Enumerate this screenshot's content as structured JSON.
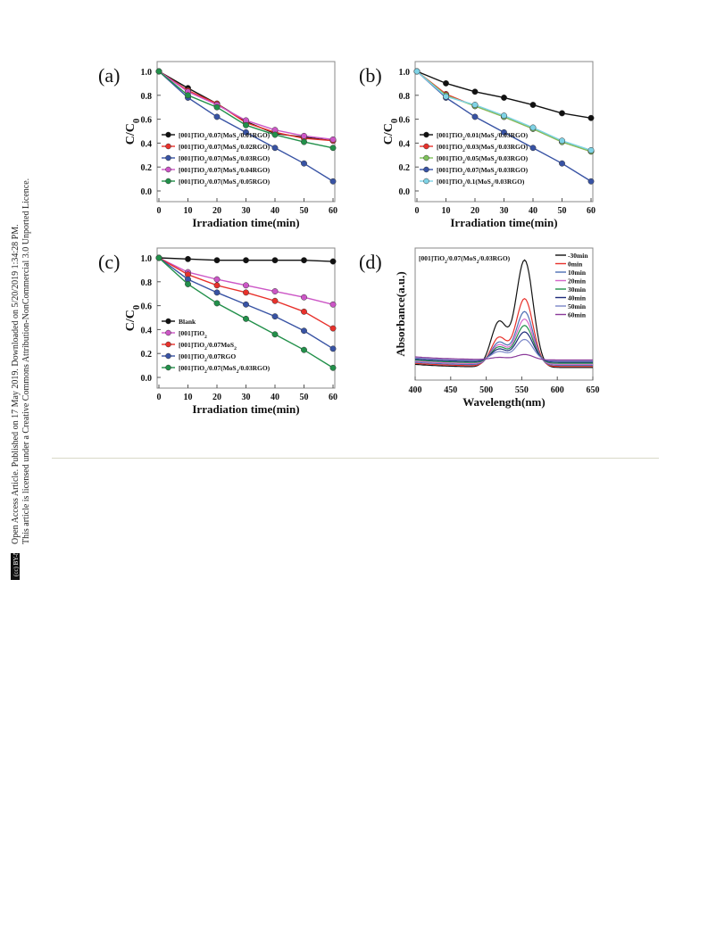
{
  "notice": {
    "line1": "Open Access Article. Published on 17 May 2019. Downloaded on 5/20/2019 1:34:28 PM.",
    "line2": "This article is licensed under a Creative Commons Attribution-NonCommercial 3.0 Unported Licence.",
    "cc_badge": "(cc) BY-NC"
  },
  "colors": {
    "black": "#111111",
    "red": "#e8312b",
    "blue": "#3853a4",
    "magenta": "#cc56c6",
    "green": "#22904a",
    "lightgreen": "#7fc25b",
    "cyan": "#7fd3e6"
  },
  "chart_data": [
    {
      "panel": "(a)",
      "type": "line",
      "xlabel": "Irradiation time(min)",
      "ylabel": "C/C0",
      "x": [
        0,
        10,
        20,
        30,
        40,
        50,
        60
      ],
      "xlim": [
        0,
        60
      ],
      "ylim": [
        0.0,
        1.0
      ],
      "xticks": [
        "0",
        "10",
        "20",
        "30",
        "40",
        "50",
        "60"
      ],
      "yticks": [
        "0.0",
        "0.2",
        "0.4",
        "0.6",
        "0.8",
        "1.0"
      ],
      "legend_position": "lower-left",
      "series": [
        {
          "name": "[001]TiO2/0.07(MoS2/0.01RGO)",
          "color": "#111111",
          "values": [
            1.0,
            0.86,
            0.73,
            0.58,
            0.48,
            0.45,
            0.42
          ]
        },
        {
          "name": "[001]TiO2/0.07(MoS2/0.02RGO)",
          "color": "#e8312b",
          "values": [
            1.0,
            0.84,
            0.73,
            0.57,
            0.49,
            0.44,
            0.42
          ]
        },
        {
          "name": "[001]TiO2/0.07(MoS2/0.03RGO)",
          "color": "#3853a4",
          "values": [
            1.0,
            0.78,
            0.62,
            0.49,
            0.36,
            0.23,
            0.08
          ]
        },
        {
          "name": "[001]TiO2/0.07(MoS2/0.04RGO)",
          "color": "#cc56c6",
          "values": [
            1.0,
            0.83,
            0.72,
            0.59,
            0.51,
            0.46,
            0.43
          ]
        },
        {
          "name": "[001]TiO2/0.07(MoS2/0.05RGO)",
          "color": "#22904a",
          "values": [
            1.0,
            0.8,
            0.7,
            0.55,
            0.47,
            0.41,
            0.36
          ]
        }
      ]
    },
    {
      "panel": "(b)",
      "type": "line",
      "xlabel": "Irradiation time(min)",
      "ylabel": "C/C0",
      "x": [
        0,
        10,
        20,
        30,
        40,
        50,
        60
      ],
      "xlim": [
        0,
        60
      ],
      "ylim": [
        0.0,
        1.0
      ],
      "xticks": [
        "0",
        "10",
        "20",
        "30",
        "40",
        "50",
        "60"
      ],
      "yticks": [
        "0.0",
        "0.2",
        "0.4",
        "0.6",
        "0.8",
        "1.0"
      ],
      "legend_position": "lower-left",
      "series": [
        {
          "name": "[001]TiO2/0.01(MoS2/0.03RGO)",
          "color": "#111111",
          "values": [
            1.0,
            0.9,
            0.83,
            0.78,
            0.72,
            0.65,
            0.61
          ]
        },
        {
          "name": "[001]TiO2/0.03(MoS2/0.03RGO)",
          "color": "#e8312b",
          "values": [
            1.0,
            0.81,
            0.71,
            0.62,
            0.52,
            0.41,
            0.33
          ]
        },
        {
          "name": "[001]TiO2/0.05(MoS2/0.03RGO)",
          "color": "#7fc25b",
          "values": [
            1.0,
            0.8,
            0.71,
            0.62,
            0.52,
            0.41,
            0.33
          ]
        },
        {
          "name": "[001]TiO2/0.07(MoS2/0.03RGO)",
          "color": "#3853a4",
          "values": [
            1.0,
            0.78,
            0.62,
            0.49,
            0.36,
            0.23,
            0.08
          ]
        },
        {
          "name": "[001]TiO2/0.1(MoS2/0.03RGO)",
          "color": "#7fd3e6",
          "values": [
            1.0,
            0.79,
            0.72,
            0.63,
            0.53,
            0.42,
            0.34
          ]
        }
      ]
    },
    {
      "panel": "(c)",
      "type": "line",
      "xlabel": "Irradiation time(min)",
      "ylabel": "C/C0",
      "x": [
        0,
        10,
        20,
        30,
        40,
        50,
        60
      ],
      "xlim": [
        0,
        60
      ],
      "ylim": [
        0.0,
        1.0
      ],
      "xticks": [
        "0",
        "10",
        "20",
        "30",
        "40",
        "50",
        "60"
      ],
      "yticks": [
        "0.0",
        "0.2",
        "0.4",
        "0.6",
        "0.8",
        "1.0"
      ],
      "legend_position": "lower-left",
      "series": [
        {
          "name": "Blank",
          "color": "#111111",
          "values": [
            1.0,
            0.99,
            0.98,
            0.98,
            0.98,
            0.98,
            0.97
          ]
        },
        {
          "name": "[001]TiO2",
          "color": "#cc56c6",
          "values": [
            1.0,
            0.88,
            0.82,
            0.77,
            0.72,
            0.67,
            0.61
          ]
        },
        {
          "name": "[001]TiO2/0.07MoS2",
          "color": "#e8312b",
          "values": [
            1.0,
            0.86,
            0.77,
            0.71,
            0.64,
            0.55,
            0.41
          ]
        },
        {
          "name": "[001]TiO2/0.07RGO",
          "color": "#3853a4",
          "values": [
            1.0,
            0.82,
            0.71,
            0.61,
            0.51,
            0.39,
            0.24
          ]
        },
        {
          "name": "[001]TiO2/0.07(MoS2/0.03RGO)",
          "color": "#22904a",
          "values": [
            1.0,
            0.78,
            0.62,
            0.49,
            0.36,
            0.23,
            0.08
          ]
        }
      ]
    },
    {
      "panel": "(d)",
      "type": "line",
      "xlabel": "Wavelength(nm)",
      "ylabel": "Absorbance(a.u.)",
      "annotation": "[001]TiO2/0.07(MoS2/0.03RGO)",
      "xlim": [
        400,
        650
      ],
      "xticks": [
        "400",
        "450",
        "500",
        "550",
        "600",
        "650"
      ],
      "peak_nm": 554,
      "shoulder_nm": 518,
      "legend_position": "top-right",
      "series": [
        {
          "name": "-30min",
          "color": "#111111",
          "peak": 1.0
        },
        {
          "name": "0min",
          "color": "#e8312b",
          "peak": 0.63
        },
        {
          "name": "10min",
          "color": "#4e6fb5",
          "peak": 0.5
        },
        {
          "name": "20min",
          "color": "#d466c8",
          "peak": 0.42
        },
        {
          "name": "30min",
          "color": "#22904a",
          "peak": 0.35
        },
        {
          "name": "40min",
          "color": "#1d2b7a",
          "peak": 0.28
        },
        {
          "name": "50min",
          "color": "#7a86c8",
          "peak": 0.2
        },
        {
          "name": "60min",
          "color": "#8a3a9a",
          "peak": 0.05
        }
      ]
    }
  ]
}
